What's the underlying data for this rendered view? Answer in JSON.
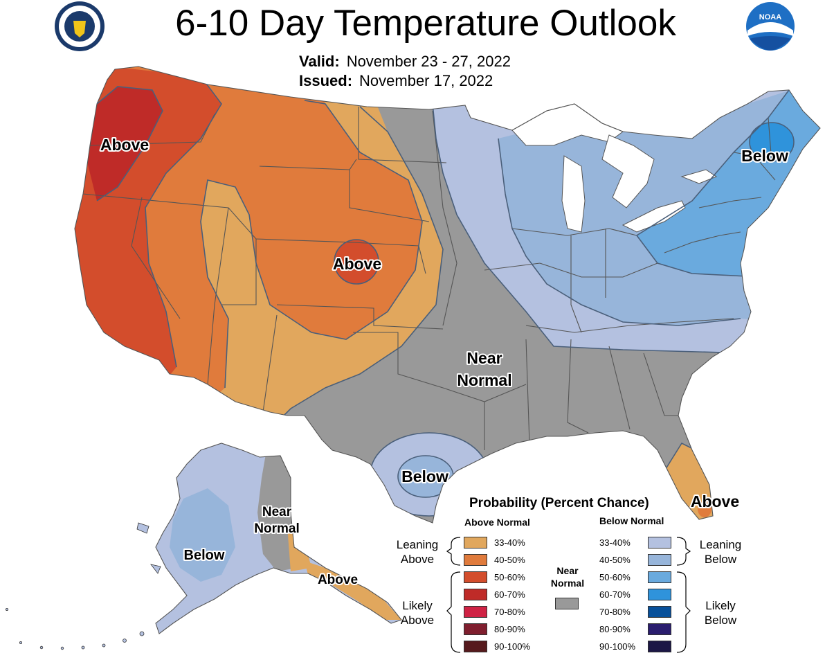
{
  "header": {
    "title": "6-10 Day Temperature Outlook",
    "valid_label": "Valid:",
    "valid_value": "November 23 - 27, 2022",
    "issued_label": "Issued:",
    "issued_value": "November 17, 2022"
  },
  "logos": {
    "left": {
      "name": "Department of Commerce seal",
      "icon": "commerce-seal-icon"
    },
    "right": {
      "name": "NOAA",
      "text": "NOAA",
      "icon": "noaa-logo-icon"
    }
  },
  "map_labels": {
    "west_coast": "Above",
    "central_plains": "Above",
    "northeast": "Below",
    "south_central_line1": "Near",
    "south_central_line2": "Normal",
    "texas": "Below",
    "florida": "Above",
    "alaska_west": "Below",
    "alaska_east_line1": "Near",
    "alaska_east_line2": "Normal",
    "alaska_southeast": "Above"
  },
  "legend": {
    "title": "Probability (Percent Chance)",
    "above_header": "Above Normal",
    "below_header": "Below Normal",
    "leaning_above": [
      "Leaning",
      "Above"
    ],
    "likely_above": [
      "Likely",
      "Above"
    ],
    "leaning_below": [
      "Leaning",
      "Below"
    ],
    "likely_below": [
      "Likely",
      "Below"
    ],
    "near_normal": [
      "Near",
      "Normal"
    ],
    "near_normal_color": "#999999",
    "above": [
      {
        "range": "33-40%",
        "color": "#e1a75d"
      },
      {
        "range": "40-50%",
        "color": "#e07b3c"
      },
      {
        "range": "50-60%",
        "color": "#d34d2c"
      },
      {
        "range": "60-70%",
        "color": "#bf2b28"
      },
      {
        "range": "70-80%",
        "color": "#cf2244"
      },
      {
        "range": "80-90%",
        "color": "#7f1e2e"
      },
      {
        "range": "90-100%",
        "color": "#561a1d"
      }
    ],
    "below": [
      {
        "range": "33-40%",
        "color": "#b4c1e0"
      },
      {
        "range": "40-50%",
        "color": "#97b5da"
      },
      {
        "range": "50-60%",
        "color": "#6aaade"
      },
      {
        "range": "60-70%",
        "color": "#2f93db"
      },
      {
        "range": "70-80%",
        "color": "#08509a"
      },
      {
        "range": "80-90%",
        "color": "#2a1d6e"
      },
      {
        "range": "90-100%",
        "color": "#1c1745"
      }
    ]
  },
  "colors": {
    "near_normal": "#999999",
    "above_33": "#e1a75d",
    "above_40": "#e07b3c",
    "above_50": "#d34d2c",
    "above_60": "#bf2b28",
    "below_33": "#b4c1e0",
    "below_40": "#97b5da",
    "below_50": "#6aaade",
    "below_60": "#2f93db"
  }
}
